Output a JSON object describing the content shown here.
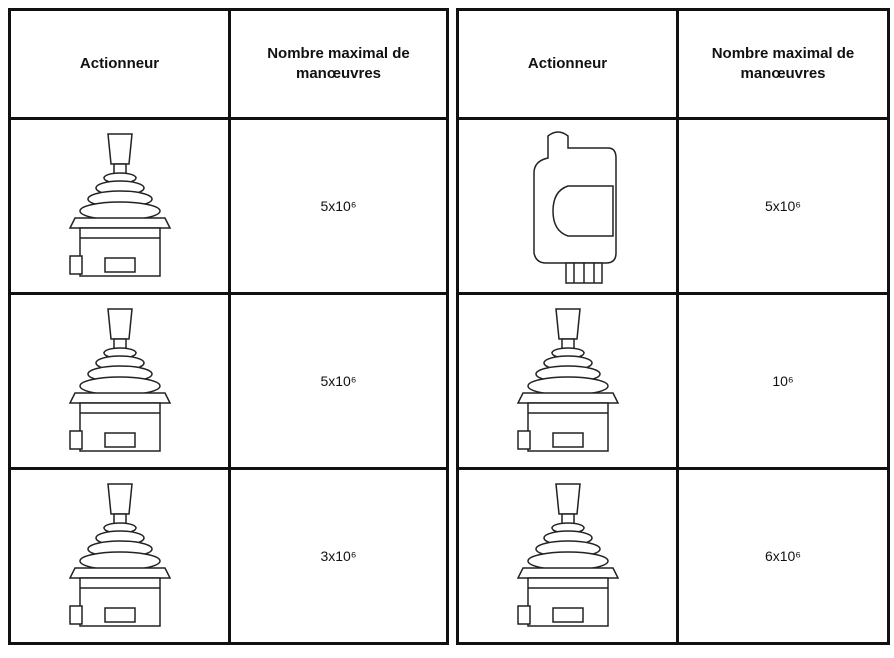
{
  "tables": [
    {
      "header": [
        "Actionneur",
        "Nombre maximal de manœuvres"
      ],
      "rows": [
        "5x10⁶",
        "5x10⁶",
        "3x10⁶"
      ]
    },
    {
      "header": [
        "Actionneur",
        "Nombre maximal de manœuvres"
      ],
      "rows": [
        "5x10⁶",
        "10⁶",
        "6x10⁶"
      ]
    }
  ]
}
